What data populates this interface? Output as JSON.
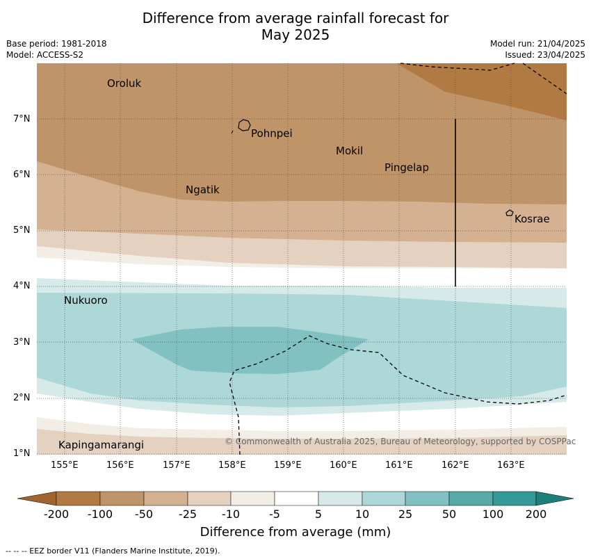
{
  "header": {
    "title_line1": "Difference from average rainfall forecast for",
    "title_line2": "May 2025",
    "base_period": "Base period: 1981-2018",
    "model": "Model: ACCESS-S2",
    "model_run": "Model run: 21/04/2025",
    "issued": "Issued: 23/04/2025"
  },
  "map": {
    "lon_labels": [
      "155°E",
      "156°E",
      "157°E",
      "158°E",
      "159°E",
      "160°E",
      "161°E",
      "162°E",
      "163°E"
    ],
    "lat_labels": [
      "7°N",
      "6°N",
      "5°N",
      "4°N",
      "3°N",
      "2°N",
      "1°N"
    ],
    "places": {
      "oroluk": "Oroluk",
      "pohnpei": "Pohnpei",
      "mokil": "Mokil",
      "pingelap": "Pingelap",
      "ngatik": "Ngatik",
      "kosrae": "Kosrae",
      "nukuoro": "Nukuoro",
      "kapingamarangi": "Kapingamarangi"
    },
    "copyright": "© Commonwealth of Australia 2025, Bureau of Meteorology, supported by COSPPac"
  },
  "colorbar": {
    "title": "Difference from average (mm)",
    "labels": [
      "-200",
      "-100",
      "-50",
      "-25",
      "-10",
      "-5",
      "5",
      "10",
      "25",
      "50",
      "100",
      "200"
    ],
    "colors": {
      "lt_minus200": "#a0652e",
      "m200_m100": "#b07a42",
      "m100_m50": "#bf9468",
      "m50_m25": "#d3b191",
      "m25_m10": "#e4d1c0",
      "m10_m5": "#f2ede5",
      "m5_5": "#ffffff",
      "p5_10": "#d6eaea",
      "p10_25": "#aed7d7",
      "p25_50": "#82c1c1",
      "p50_100": "#58aaa9",
      "p100_200": "#349997",
      "gt200": "#1e7e7c"
    }
  },
  "footer": {
    "legend": "--  --  -- EEZ border V11 (Flanders Marine Institute, 2019)."
  }
}
